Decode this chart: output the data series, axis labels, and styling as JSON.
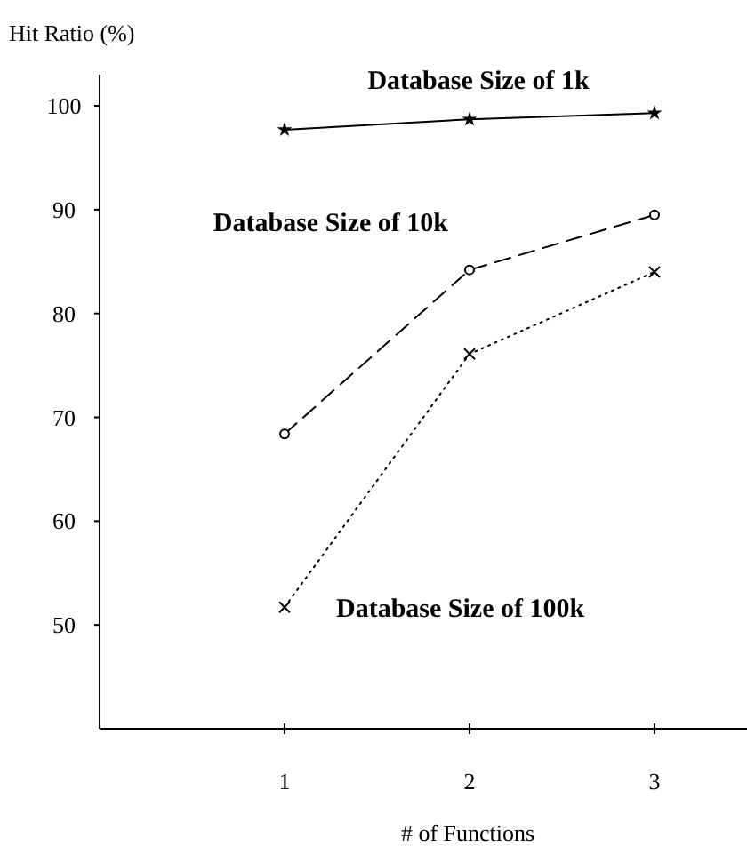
{
  "chart_data": {
    "type": "line",
    "ylabel": "Hit Ratio (%)",
    "xlabel": "# of Functions",
    "x": [
      1,
      2,
      3
    ],
    "xlim": [
      0,
      3.5
    ],
    "xticks": [
      1,
      2,
      3
    ],
    "ylim": [
      40,
      103
    ],
    "yticks": [
      50,
      60,
      70,
      80,
      90,
      100
    ],
    "series": [
      {
        "name": "Database Size of 1k",
        "color": "#000000",
        "values": [
          97.7,
          98.7,
          99.3
        ],
        "marker": "star",
        "line_style": "solid"
      },
      {
        "name": "Database Size of 10k",
        "color": "#000000",
        "values": [
          68.4,
          84.2,
          89.5
        ],
        "marker": "circle",
        "line_style": "dashed"
      },
      {
        "name": "Database Size of 100k",
        "color": "#000000",
        "values": [
          51.7,
          76.1,
          84.0
        ],
        "marker": "cross",
        "line_style": "dotted"
      }
    ]
  }
}
